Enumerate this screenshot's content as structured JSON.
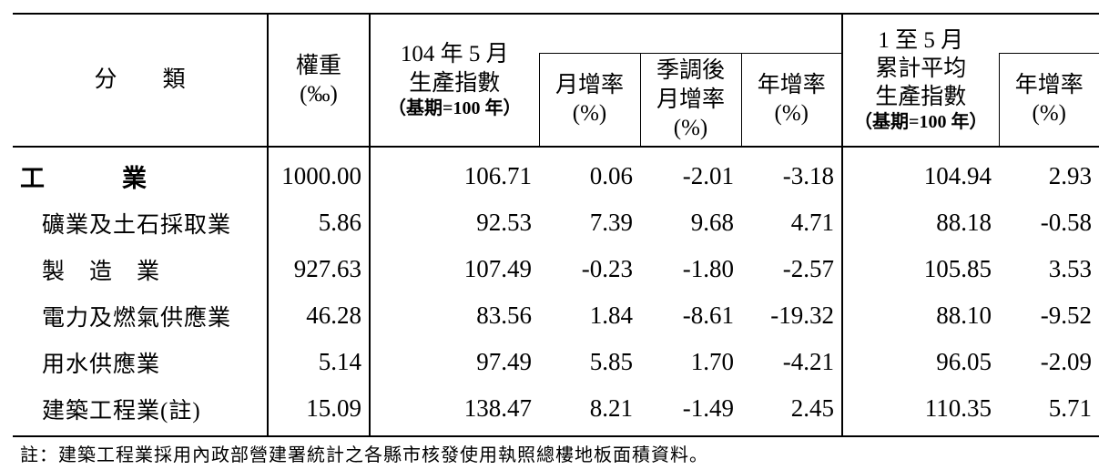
{
  "header": {
    "category": "分　　類",
    "weight": [
      "權重",
      "(‰)"
    ],
    "index_104": [
      "104 年 5 月",
      "生產指數",
      "（基期=100 年）"
    ],
    "mom": [
      "月增率",
      "(%)"
    ],
    "sa_mom": [
      "季調後",
      "月增率",
      "(%)"
    ],
    "yoy": [
      "年增率",
      "(%)"
    ],
    "cum": [
      "1 至 5 月",
      "累計平均",
      "生產指數",
      "（基期=100 年）"
    ],
    "cum_yoy": [
      "年增率",
      "(%)"
    ]
  },
  "rows": [
    {
      "name": "工　　　業",
      "weight": "1000.00",
      "index": "106.71",
      "mom": "0.06",
      "sa_mom": "-2.01",
      "yoy": "-3.18",
      "cum": "104.94",
      "cum_yoy": "2.93"
    },
    {
      "name": "礦業及土石採取業",
      "weight": "5.86",
      "index": "92.53",
      "mom": "7.39",
      "sa_mom": "9.68",
      "yoy": "4.71",
      "cum": "88.18",
      "cum_yoy": "-0.58"
    },
    {
      "name": "製　造　業",
      "weight": "927.63",
      "index": "107.49",
      "mom": "-0.23",
      "sa_mom": "-1.80",
      "yoy": "-2.57",
      "cum": "105.85",
      "cum_yoy": "3.53"
    },
    {
      "name": "電力及燃氣供應業",
      "weight": "46.28",
      "index": "83.56",
      "mom": "1.84",
      "sa_mom": "-8.61",
      "yoy": "-19.32",
      "cum": "88.10",
      "cum_yoy": "-9.52"
    },
    {
      "name": "用水供應業",
      "weight": "5.14",
      "index": "97.49",
      "mom": "5.85",
      "sa_mom": "1.70",
      "yoy": "-4.21",
      "cum": "96.05",
      "cum_yoy": "-2.09"
    },
    {
      "name": "建築工程業(註)",
      "weight": "15.09",
      "index": "138.47",
      "mom": "8.21",
      "sa_mom": "-1.49",
      "yoy": "2.45",
      "cum": "110.35",
      "cum_yoy": "5.71"
    }
  ],
  "footnote": "註：建築工程業採用內政部營建署統計之各縣市核發使用執照總樓地板面積資料。"
}
